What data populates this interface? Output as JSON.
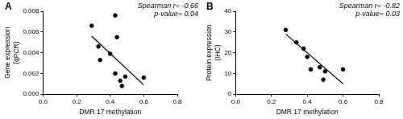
{
  "chart_data": [
    {
      "type": "scatter",
      "title": "A",
      "annotations": [
        "Spearman r= -0.66",
        "p-value= 0.04"
      ],
      "xlabel": "DMR 17 methylation",
      "ylabel": [
        "Gene expression",
        "(qPCR)"
      ],
      "xlim": [
        0,
        0.8
      ],
      "xticks": [
        {
          "value": 0,
          "label": "0.0"
        },
        0.2,
        0.4,
        0.6,
        0.8
      ],
      "ylim": [
        0,
        0.008
      ],
      "yticks": [
        {
          "value": 0,
          "label": "0.000"
        },
        0.002,
        0.004,
        0.006,
        0.008
      ],
      "grid": false,
      "series": [
        {
          "type": "scatter",
          "color": "#000000",
          "marker": "circle",
          "x": [
            0.29,
            0.33,
            0.34,
            0.4,
            0.43,
            0.44,
            0.43,
            0.46,
            0.47,
            0.49,
            0.6
          ],
          "values": [
            0.0066,
            0.0046,
            0.0033,
            0.0039,
            0.0076,
            0.0055,
            0.002,
            0.0013,
            0.0008,
            0.0017,
            0.0016
          ]
        },
        {
          "type": "line",
          "color": "#000000",
          "line_style": "solid",
          "x": [
            0.29,
            0.6
          ],
          "values": [
            0.0056,
            0.0009
          ]
        }
      ]
    },
    {
      "type": "scatter",
      "title": "B",
      "annotations": [
        "Spearman r= -0.82",
        "p-value= 0.03"
      ],
      "xlabel": "DMR 17 methylation",
      "ylabel": [
        "Protein expression",
        "(IHC)"
      ],
      "xlim": [
        0,
        0.8
      ],
      "xticks": [
        {
          "value": 0,
          "label": "0.0"
        },
        0.2,
        0.4,
        0.6,
        0.8
      ],
      "ylim": [
        0,
        40
      ],
      "yticks": [
        0,
        10,
        20,
        30,
        40
      ],
      "grid": false,
      "series": [
        {
          "type": "scatter",
          "color": "#000000",
          "marker": "circle",
          "x": [
            0.28,
            0.34,
            0.38,
            0.4,
            0.42,
            0.47,
            0.49,
            0.5,
            0.6
          ],
          "values": [
            31,
            25,
            22,
            18,
            12,
            13,
            7,
            11,
            12
          ]
        },
        {
          "type": "line",
          "color": "#000000",
          "line_style": "solid",
          "x": [
            0.28,
            0.6
          ],
          "values": [
            29,
            5
          ]
        }
      ]
    }
  ]
}
